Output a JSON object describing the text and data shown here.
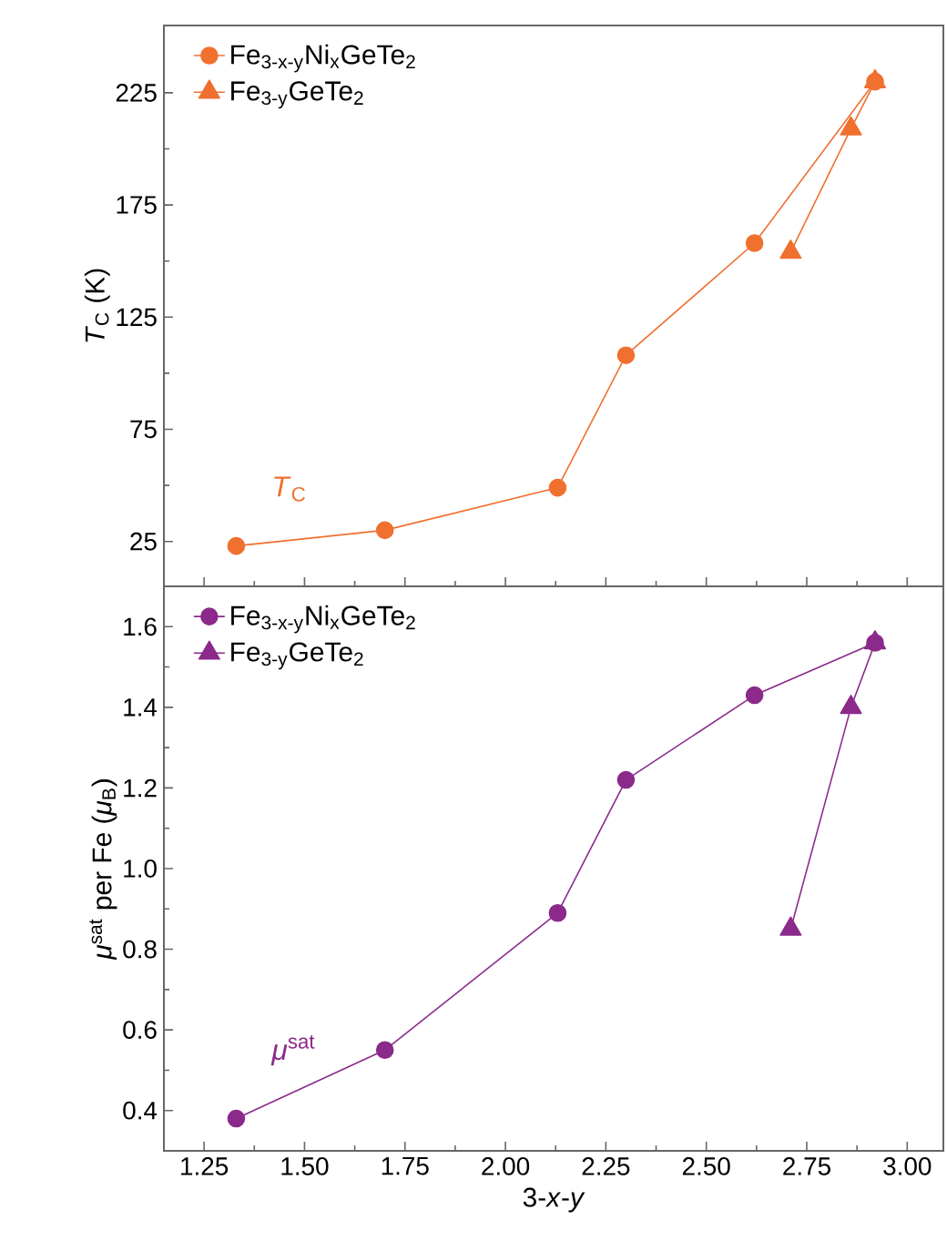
{
  "chart_data": [
    {
      "type": "line",
      "ylabel": "*T*$_{C}$ (K)",
      "annotations": [
        "*T*$_{C}$"
      ],
      "legend": "top left",
      "tick_labels": "y",
      "line_style": "solid",
      "xlim": [
        1.15,
        3.09
      ],
      "xticks": [
        1.25,
        1.5,
        1.75,
        2.0,
        2.25,
        2.5,
        2.75,
        3.0
      ],
      "ylim": [
        5,
        255
      ],
      "yticks": [
        25,
        75,
        125,
        175,
        225
      ],
      "series": [
        {
          "name": "Fe$_{3-x-y}$Ni$_{x}$GeTe$_{2}$",
          "color": "#f07030",
          "marker": "circle",
          "x": [
            1.33,
            1.7,
            2.13,
            2.3,
            2.62,
            2.92
          ],
          "values": [
            23,
            30,
            49,
            108,
            158,
            230
          ]
        },
        {
          "name": "Fe$_{3-y}$GeTe$_{2}$",
          "color": "#f07030",
          "marker": "triangle",
          "x": [
            2.71,
            2.86,
            2.92
          ],
          "values": [
            154,
            209,
            230
          ]
        }
      ]
    },
    {
      "type": "line",
      "xlabel": "3-*x*-*y*",
      "ylabel": "*μ*$^{sat}$ per Fe (*μ*$_{B}$)",
      "annotations": [
        "*μ*$^{sat}$"
      ],
      "legend": "top left",
      "line_style": "solid",
      "xlim": [
        1.15,
        3.09
      ],
      "xticks": [
        1.25,
        {
          "value": 1.5,
          "label": "1.50"
        },
        1.75,
        {
          "value": 2.0,
          "label": "2.00"
        },
        2.25,
        {
          "value": 2.5,
          "label": "2.50"
        },
        2.75,
        {
          "value": 3.0,
          "label": "3.00"
        }
      ],
      "ylim": [
        0.3,
        1.7
      ],
      "yticks": [
        0.4,
        0.6,
        0.8,
        {
          "value": 1.0,
          "label": "1.0"
        },
        1.2,
        1.4,
        1.6
      ],
      "series": [
        {
          "name": "Fe$_{3-x-y}$Ni$_{x}$GeTe$_{2}$",
          "color": "#8b2a8b",
          "marker": "circle",
          "x": [
            1.33,
            1.7,
            2.13,
            2.3,
            2.62,
            2.92
          ],
          "values": [
            0.38,
            0.55,
            0.89,
            1.22,
            1.43,
            1.56
          ]
        },
        {
          "name": "Fe$_{3-y}$GeTe$_{2}$",
          "color": "#8b2a8b",
          "marker": "triangle",
          "x": [
            2.71,
            2.86,
            2.92
          ],
          "values": [
            0.85,
            1.4,
            1.56
          ]
        }
      ]
    }
  ]
}
